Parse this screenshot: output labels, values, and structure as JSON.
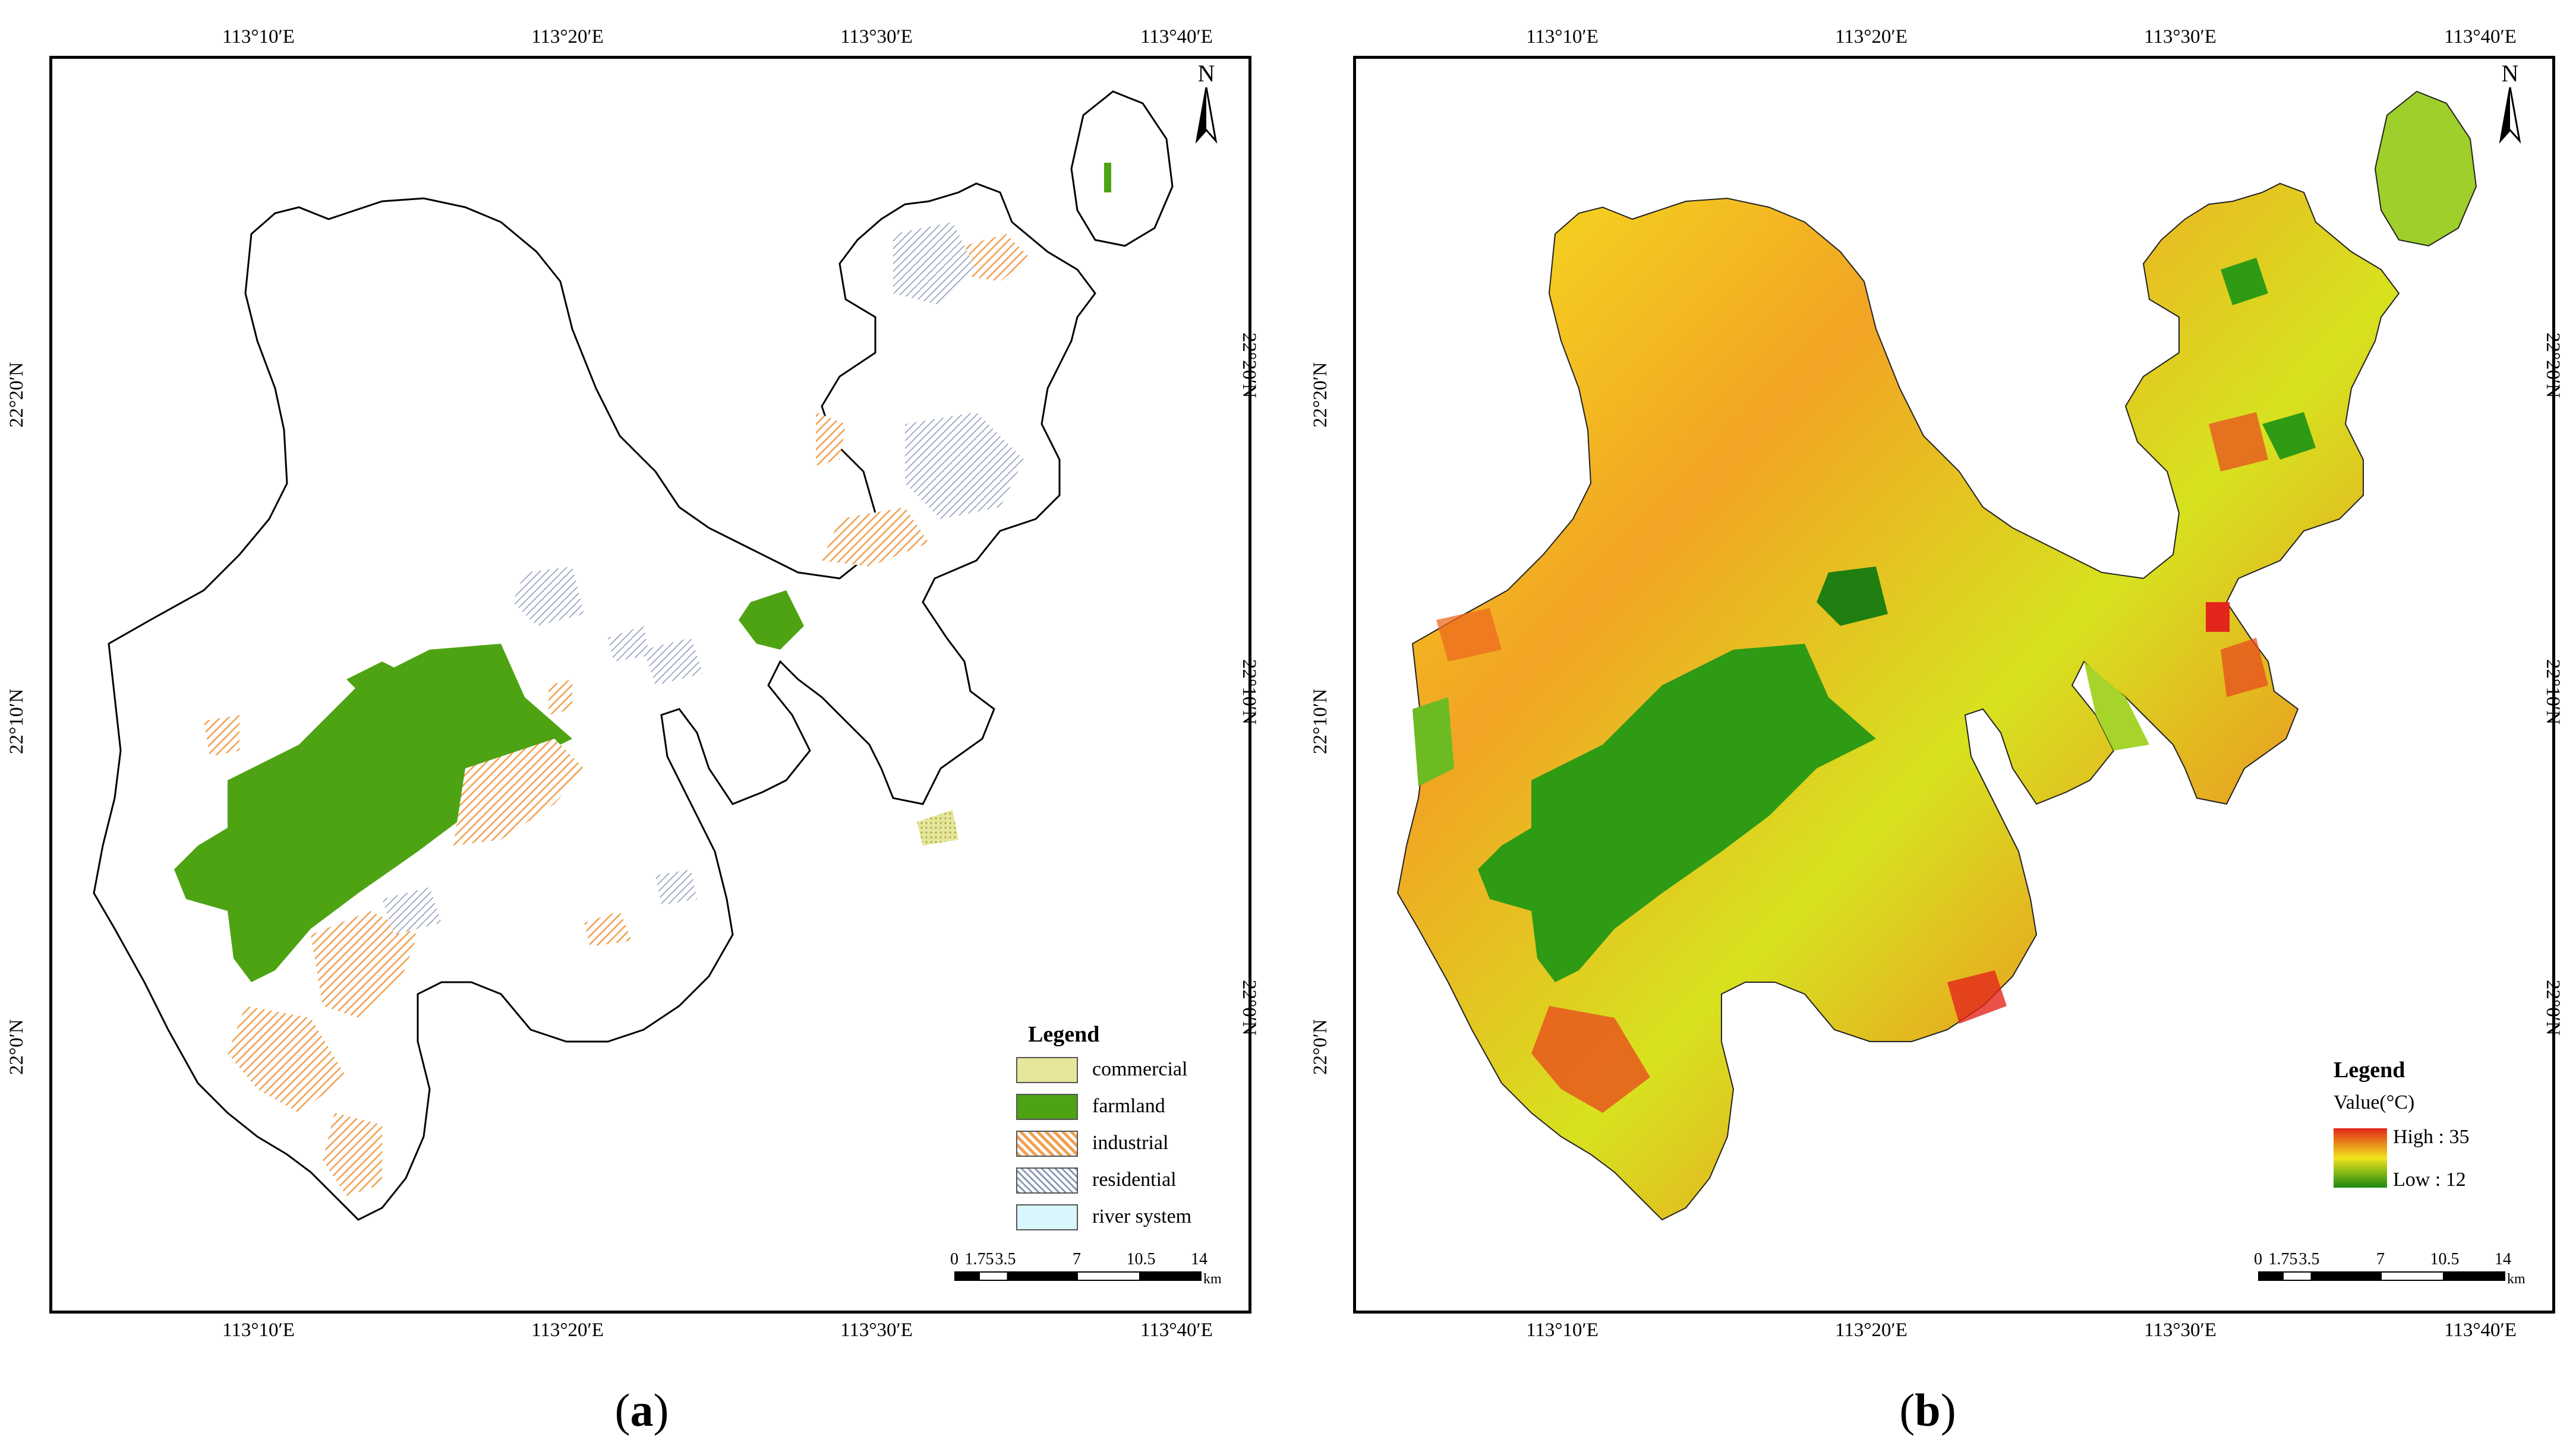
{
  "panel_a": {
    "caption_letter": "a",
    "lon_ticks": [
      "113°10′E",
      "113°20′E",
      "113°30′E",
      "113°40′E"
    ],
    "lat_ticks": [
      "22°20′N",
      "22°10′N",
      "22°0′N"
    ],
    "north_label": "N",
    "legend": {
      "title": "Legend",
      "items": [
        {
          "label": "commercial",
          "color": "#d9d973"
        },
        {
          "label": "farmland",
          "color": "#4ea313"
        },
        {
          "label": "industrial",
          "color": "#f3ad6a"
        },
        {
          "label": "residential",
          "color": "#aab4cc"
        },
        {
          "label": "river system",
          "color": "#d8f6fb"
        }
      ]
    },
    "scale": {
      "ticks": [
        "0",
        "1.75",
        "3.5",
        "7",
        "10.5",
        "14"
      ],
      "unit": "km"
    }
  },
  "panel_b": {
    "caption_letter": "b",
    "lon_ticks": [
      "113°10′E",
      "113°20′E",
      "113°30′E",
      "113°40′E"
    ],
    "lat_ticks": [
      "22°20′N",
      "22°10′N",
      "22°0′N"
    ],
    "north_label": "N",
    "legend": {
      "title": "Legend",
      "subtitle": "Value(°C)",
      "high_label": "High : 35",
      "low_label": "Low : 12",
      "colors": {
        "high": "#e3261b",
        "mid": "#f0e41c",
        "low": "#1a8a10"
      }
    },
    "scale": {
      "ticks": [
        "0",
        "1.75",
        "3.5",
        "7",
        "10.5",
        "14"
      ],
      "unit": "km"
    }
  }
}
